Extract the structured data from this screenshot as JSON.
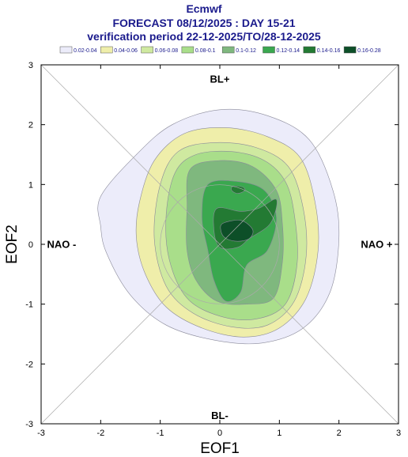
{
  "header": {
    "title": "Ecmwf",
    "subtitle": "FORECAST 08/12/2025 : DAY 15-21",
    "period": "verification period 22-12-2025/TO/28-12-2025"
  },
  "chart_data": {
    "type": "contour",
    "xlabel": "EOF1",
    "ylabel": "EOF2",
    "xlim": [
      -3,
      3
    ],
    "ylim": [
      -3,
      3
    ],
    "xticks": [
      "-3",
      "-2",
      "-1",
      "0",
      "1",
      "2",
      "3"
    ],
    "yticks": [
      "-3",
      "-2",
      "-1",
      "0",
      "1",
      "2",
      "3"
    ],
    "annotations": {
      "top": "BL+",
      "bottom": "BL-",
      "left": "NAO -",
      "right": "NAO +"
    },
    "legend_position": "top",
    "legend": [
      {
        "label": "0.02-0.04",
        "color": "#ececfa"
      },
      {
        "label": "0.04-0.06",
        "color": "#efeeaa"
      },
      {
        "label": "0.06-0.08",
        "color": "#cfe9a0"
      },
      {
        "label": "0.08-0.1",
        "color": "#a9de8a"
      },
      {
        "label": "0.1-0.12",
        "color": "#7fb87e"
      },
      {
        "label": "0.12-0.14",
        "color": "#3aa84f"
      },
      {
        "label": "0.14-0.16",
        "color": "#237a33"
      },
      {
        "label": "0.16-0.28",
        "color": "#0d4f28"
      }
    ],
    "levels": [
      {
        "range": "0.02-0.04",
        "outline": [
          [
            -2.0,
            0.3
          ],
          [
            -2.0,
            0.8
          ],
          [
            -1.4,
            1.5
          ],
          [
            -0.8,
            2.0
          ],
          [
            0.0,
            2.25
          ],
          [
            0.8,
            2.15
          ],
          [
            1.5,
            1.75
          ],
          [
            1.9,
            0.9
          ],
          [
            2.0,
            0.1
          ],
          [
            1.85,
            -0.8
          ],
          [
            1.4,
            -1.4
          ],
          [
            0.7,
            -1.65
          ],
          [
            -0.1,
            -1.6
          ],
          [
            -0.9,
            -1.35
          ],
          [
            -1.5,
            -0.85
          ],
          [
            -1.9,
            -0.15
          ]
        ]
      },
      {
        "range": "0.04-0.06",
        "outline": [
          [
            -1.35,
            0.7
          ],
          [
            -1.1,
            1.4
          ],
          [
            -0.6,
            1.85
          ],
          [
            0.1,
            1.95
          ],
          [
            0.8,
            1.8
          ],
          [
            1.35,
            1.45
          ],
          [
            1.6,
            0.7
          ],
          [
            1.65,
            -0.1
          ],
          [
            1.45,
            -0.9
          ],
          [
            1.0,
            -1.4
          ],
          [
            0.4,
            -1.55
          ],
          [
            -0.3,
            -1.4
          ],
          [
            -0.9,
            -1.05
          ],
          [
            -1.25,
            -0.5
          ],
          [
            -1.4,
            0.1
          ]
        ]
      },
      {
        "range": "0.06-0.08",
        "outline": [
          [
            -1.0,
            1.0
          ],
          [
            -0.7,
            1.55
          ],
          [
            -0.1,
            1.7
          ],
          [
            0.6,
            1.62
          ],
          [
            1.15,
            1.3
          ],
          [
            1.4,
            0.6
          ],
          [
            1.45,
            -0.2
          ],
          [
            1.25,
            -0.95
          ],
          [
            0.8,
            -1.35
          ],
          [
            0.2,
            -1.38
          ],
          [
            -0.45,
            -1.15
          ],
          [
            -0.9,
            -0.7
          ],
          [
            -1.1,
            0.1
          ]
        ]
      },
      {
        "range": "0.08-0.1",
        "outline": [
          [
            -0.75,
            1.2
          ],
          [
            -0.4,
            1.5
          ],
          [
            0.2,
            1.55
          ],
          [
            0.75,
            1.4
          ],
          [
            1.1,
            1.05
          ],
          [
            1.25,
            0.5
          ],
          [
            1.3,
            -0.3
          ],
          [
            1.1,
            -1.0
          ],
          [
            0.6,
            -1.25
          ],
          [
            0.0,
            -1.2
          ],
          [
            -0.55,
            -0.9
          ],
          [
            -0.85,
            -0.25
          ],
          [
            -0.9,
            0.5
          ]
        ]
      },
      {
        "range": "0.1-0.12",
        "outline": [
          [
            -0.5,
            1.25
          ],
          [
            0.0,
            1.4
          ],
          [
            0.55,
            1.3
          ],
          [
            0.95,
            0.9
          ],
          [
            1.05,
            0.35
          ],
          [
            1.05,
            -0.3
          ],
          [
            0.9,
            -0.9
          ],
          [
            0.45,
            -1.0
          ],
          [
            -0.05,
            -0.95
          ],
          [
            -0.4,
            -0.6
          ],
          [
            -0.55,
            -0.1
          ],
          [
            -0.55,
            0.6
          ]
        ]
      },
      {
        "range": "0.12-0.14",
        "outline": [
          [
            -0.2,
            1.0
          ],
          [
            0.3,
            1.05
          ],
          [
            0.75,
            0.9
          ],
          [
            0.95,
            0.45
          ],
          [
            0.8,
            -0.1
          ],
          [
            0.45,
            -0.35
          ],
          [
            0.35,
            -0.8
          ],
          [
            0.1,
            -0.95
          ],
          [
            -0.1,
            -0.6
          ],
          [
            -0.2,
            -0.1
          ],
          [
            -0.3,
            0.45
          ]
        ]
      },
      {
        "range": "0.14-0.16",
        "outline": [
          [
            -0.05,
            0.6
          ],
          [
            0.35,
            0.55
          ],
          [
            0.65,
            0.6
          ],
          [
            0.95,
            0.75
          ],
          [
            0.85,
            0.35
          ],
          [
            0.5,
            0.1
          ],
          [
            0.3,
            -0.05
          ],
          [
            0.0,
            -0.05
          ],
          [
            -0.1,
            0.25
          ]
        ]
      },
      {
        "range": "0.14-0.16",
        "outline": [
          [
            0.22,
            0.97
          ],
          [
            0.38,
            0.96
          ],
          [
            0.42,
            0.9
          ],
          [
            0.3,
            0.85
          ],
          [
            0.2,
            0.9
          ]
        ]
      },
      {
        "range": "0.16-0.28",
        "outline": [
          [
            0.05,
            0.35
          ],
          [
            0.35,
            0.4
          ],
          [
            0.55,
            0.25
          ],
          [
            0.5,
            0.1
          ],
          [
            0.3,
            0.05
          ],
          [
            0.1,
            0.1
          ],
          [
            0.02,
            0.22
          ]
        ]
      }
    ]
  }
}
